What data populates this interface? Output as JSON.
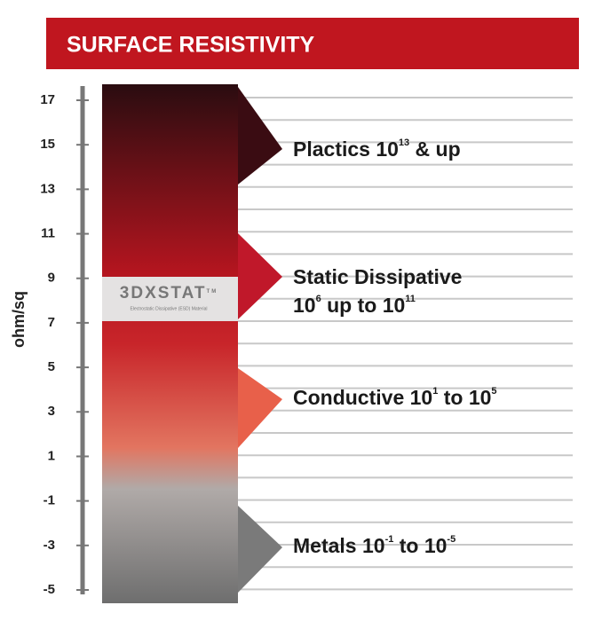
{
  "header": {
    "title": "SURFACE RESISTIVITY"
  },
  "axis": {
    "label": "ohm/sq",
    "ticks": [
      17,
      15,
      13,
      11,
      9,
      7,
      5,
      3,
      1,
      -1,
      -3,
      -5
    ]
  },
  "logo": {
    "name": "3DXSTAT",
    "trademark": "TM",
    "tagline": "Electrostatic Dissipative (ESD) Material"
  },
  "levels": [
    {
      "lines": [
        [
          {
            "text": "Plactics 10"
          },
          {
            "sup": "13"
          },
          {
            "text": " & up"
          }
        ]
      ]
    },
    {
      "lines": [
        [
          {
            "text": "Static Dissipative"
          }
        ],
        [
          {
            "text": "10"
          },
          {
            "sup": "6"
          },
          {
            "text": " up to 10"
          },
          {
            "sup": "11"
          }
        ]
      ]
    },
    {
      "lines": [
        [
          {
            "text": "Conductive 10"
          },
          {
            "sup": "1"
          },
          {
            "text": " to 10"
          },
          {
            "sup": "5"
          }
        ]
      ]
    },
    {
      "lines": [
        [
          {
            "text": "Metals 10"
          },
          {
            "sup": "-1"
          },
          {
            "text": " to 10"
          },
          {
            "sup": "-5"
          }
        ]
      ]
    }
  ]
}
